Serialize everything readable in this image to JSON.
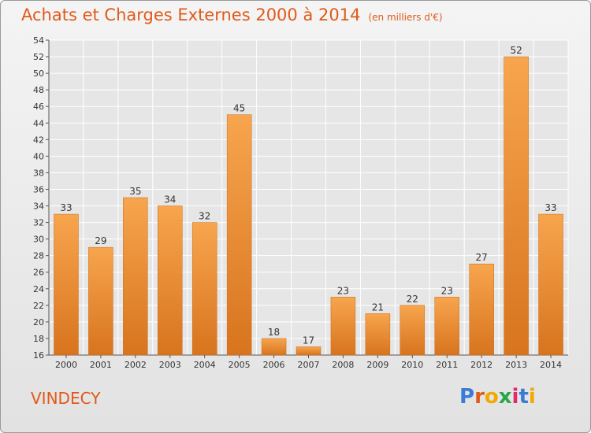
{
  "header": {
    "title": "Achats et Charges Externes 2000 à 2014",
    "subtitle": "(en milliers d'€)"
  },
  "footer": {
    "commune": "VINDECY",
    "logo_text": "Proxiti",
    "logo_colors": [
      "#3a7bd5",
      "#e05a1a",
      "#f2a900",
      "#2aa64a",
      "#e02a6a",
      "#3a7bd5",
      "#f2a900"
    ]
  },
  "colors": {
    "bar_light": "#f7a54e",
    "bar_dark": "#d8741e",
    "accent": "#e05a1a",
    "grid": "#ffffff"
  },
  "chart_data": {
    "type": "bar",
    "title": "Achats et Charges Externes 2000 à 2014",
    "subtitle": "(en milliers d'€)",
    "categories": [
      "2000",
      "2001",
      "2002",
      "2003",
      "2004",
      "2005",
      "2006",
      "2007",
      "2008",
      "2009",
      "2010",
      "2011",
      "2012",
      "2013",
      "2014"
    ],
    "values": [
      33,
      29,
      35,
      34,
      32,
      45,
      18,
      17,
      23,
      21,
      22,
      23,
      27,
      52,
      33
    ],
    "ylim": [
      16,
      54
    ],
    "yticks": [
      16,
      18,
      20,
      22,
      24,
      26,
      28,
      30,
      32,
      34,
      36,
      38,
      40,
      42,
      44,
      46,
      48,
      50,
      52,
      54
    ],
    "grid": true,
    "data_labels": true
  }
}
